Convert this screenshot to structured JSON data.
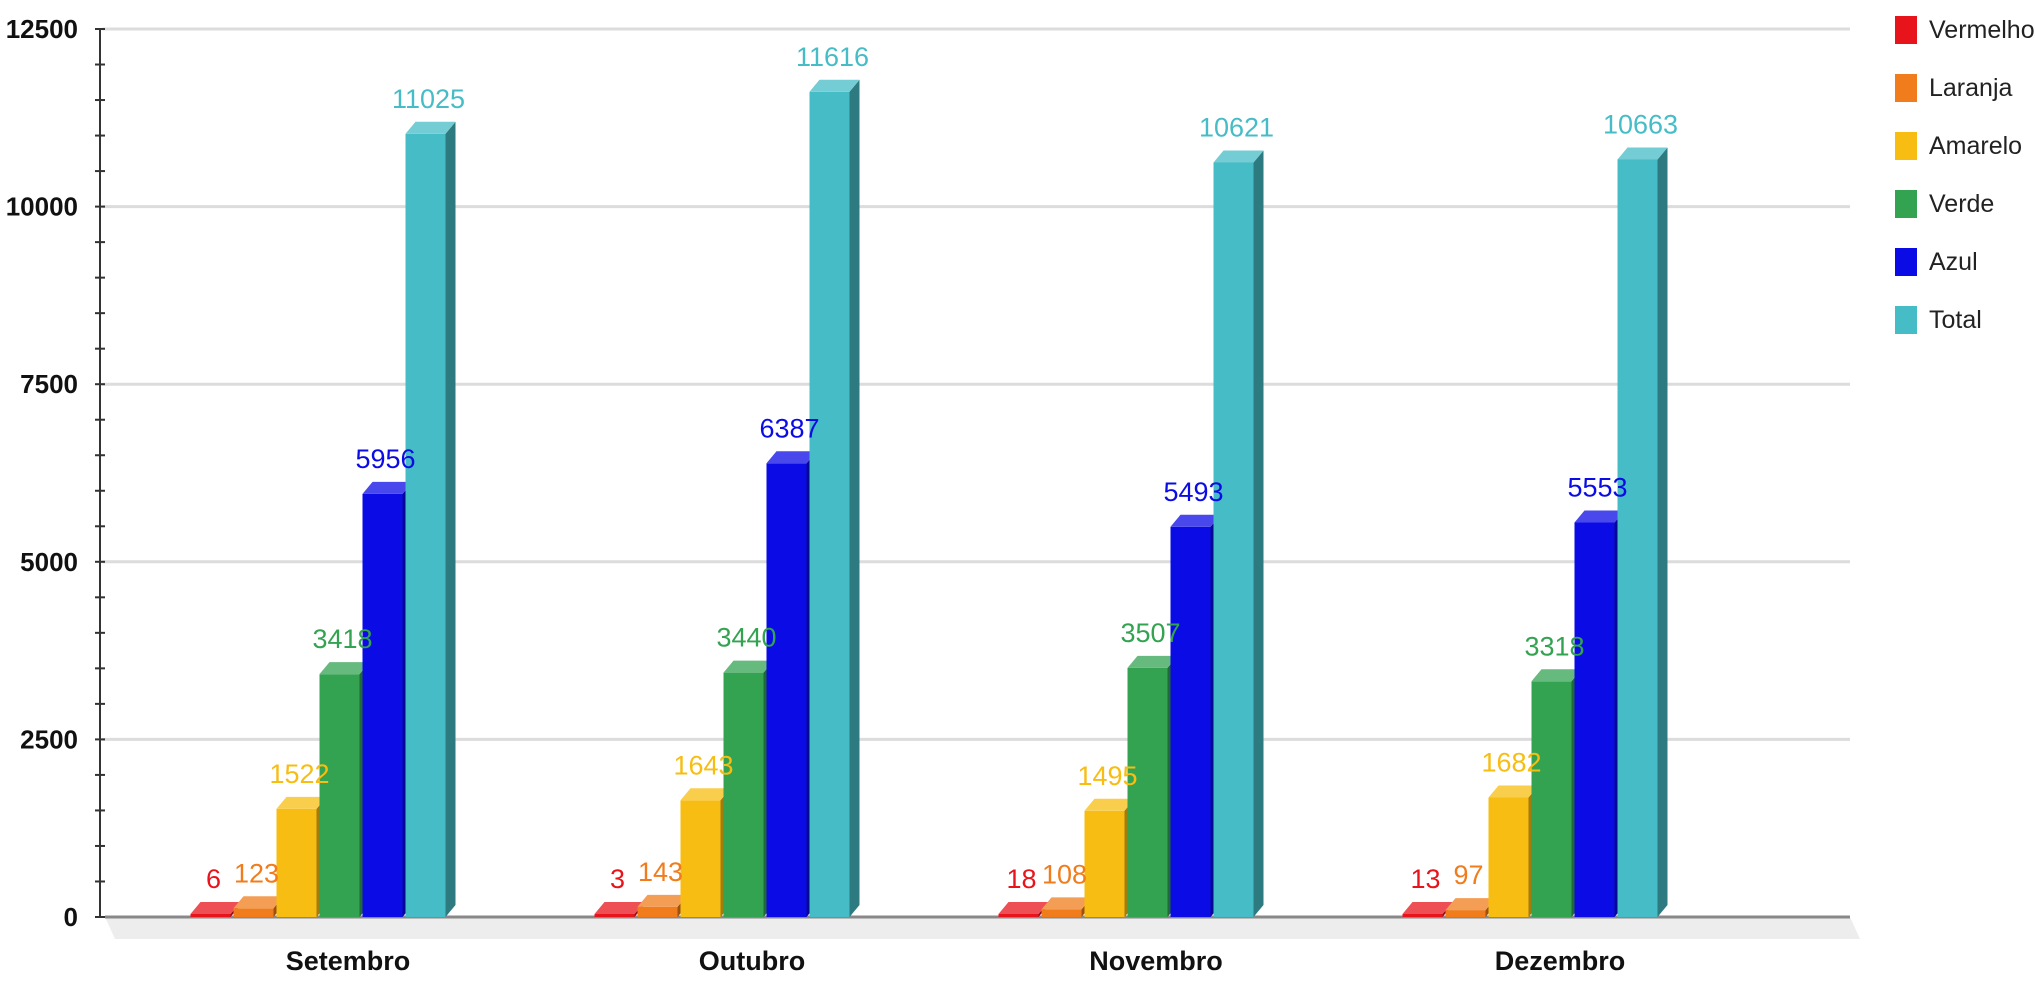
{
  "chart_data": {
    "type": "bar",
    "title": "",
    "xlabel": "",
    "ylabel": "",
    "ylim": [
      0,
      12500
    ],
    "yticks": [
      0,
      2500,
      5000,
      7500,
      10000,
      12500
    ],
    "grid": true,
    "legend_position": "top-right",
    "categories": [
      "Setembro",
      "Outubro",
      "Novembro",
      "Dezembro"
    ],
    "series": [
      {
        "name": "Vermelho",
        "color": "#e8141c",
        "values": [
          6,
          3,
          18,
          13
        ]
      },
      {
        "name": "Laranja",
        "color": "#f07c1c",
        "values": [
          123,
          143,
          108,
          97
        ]
      },
      {
        "name": "Amarelo",
        "color": "#f7bd12",
        "values": [
          1522,
          1643,
          1495,
          1682
        ]
      },
      {
        "name": "Verde",
        "color": "#33a351",
        "values": [
          3418,
          3440,
          3507,
          3318
        ]
      },
      {
        "name": "Azul",
        "color": "#0b0be6",
        "values": [
          5956,
          6387,
          5493,
          5553
        ]
      },
      {
        "name": "Total",
        "color": "#46bcc6",
        "values": [
          11025,
          11616,
          10621,
          10663
        ]
      }
    ]
  }
}
